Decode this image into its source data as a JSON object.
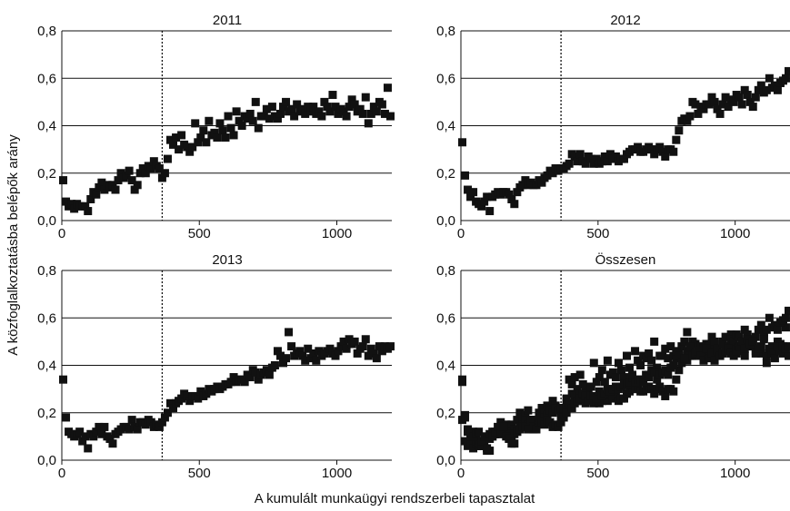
{
  "xlabel": "A kumulált munkaügyi rendszerbeli tapasztalat",
  "ylabel": "A közfoglalkoztatásba belépők arány",
  "chart_data": [
    {
      "type": "scatter",
      "title": "2011",
      "xlim": [
        0,
        1200
      ],
      "ylim": [
        0,
        0.8
      ],
      "xticks": [
        "0",
        "500",
        "1000"
      ],
      "yticks": [
        "0,0",
        "0,2",
        "0,4",
        "0,6",
        "0,8"
      ],
      "grid": "horizontal",
      "marker": "square",
      "vline_x": 365,
      "x": [
        5,
        15,
        25,
        35,
        45,
        55,
        65,
        75,
        85,
        95,
        105,
        115,
        125,
        135,
        145,
        155,
        165,
        175,
        185,
        195,
        205,
        215,
        225,
        235,
        245,
        255,
        265,
        275,
        285,
        295,
        305,
        315,
        325,
        335,
        345,
        355,
        365,
        375,
        385,
        395,
        405,
        415,
        425,
        435,
        445,
        455,
        465,
        475,
        485,
        495,
        505,
        515,
        525,
        535,
        545,
        555,
        565,
        575,
        585,
        595,
        605,
        615,
        625,
        635,
        645,
        655,
        665,
        675,
        685,
        695,
        705,
        715,
        725,
        735,
        745,
        755,
        765,
        775,
        785,
        795,
        805,
        815,
        825,
        835,
        845,
        855,
        865,
        875,
        885,
        895,
        905,
        915,
        925,
        935,
        945,
        955,
        965,
        975,
        985,
        995,
        1005,
        1015,
        1025,
        1035,
        1045,
        1055,
        1065,
        1075,
        1085,
        1095,
        1105,
        1115,
        1125,
        1135,
        1145,
        1155,
        1165,
        1175,
        1185,
        1195
      ],
      "y": [
        0.17,
        0.08,
        0.06,
        0.07,
        0.05,
        0.07,
        0.06,
        0.06,
        0.06,
        0.04,
        0.09,
        0.12,
        0.11,
        0.14,
        0.16,
        0.13,
        0.15,
        0.14,
        0.15,
        0.13,
        0.17,
        0.2,
        0.18,
        0.19,
        0.21,
        0.17,
        0.13,
        0.15,
        0.2,
        0.22,
        0.2,
        0.23,
        0.22,
        0.25,
        0.23,
        0.22,
        0.18,
        0.2,
        0.26,
        0.34,
        0.32,
        0.35,
        0.3,
        0.36,
        0.32,
        0.31,
        0.29,
        0.31,
        0.41,
        0.33,
        0.35,
        0.38,
        0.33,
        0.42,
        0.36,
        0.37,
        0.35,
        0.41,
        0.38,
        0.35,
        0.44,
        0.39,
        0.36,
        0.46,
        0.42,
        0.4,
        0.44,
        0.43,
        0.45,
        0.42,
        0.5,
        0.39,
        0.44,
        0.44,
        0.47,
        0.43,
        0.48,
        0.44,
        0.43,
        0.45,
        0.48,
        0.5,
        0.46,
        0.47,
        0.44,
        0.49,
        0.46,
        0.47,
        0.45,
        0.48,
        0.46,
        0.48,
        0.45,
        0.46,
        0.44,
        0.5,
        0.48,
        0.46,
        0.53,
        0.48,
        0.45,
        0.47,
        0.46,
        0.44,
        0.48,
        0.51,
        0.49,
        0.46,
        0.47,
        0.45,
        0.52,
        0.41,
        0.45,
        0.48,
        0.46,
        0.5,
        0.49,
        0.45,
        0.56,
        0.44
      ]
    },
    {
      "type": "scatter",
      "title": "2012",
      "xlim": [
        0,
        1200
      ],
      "ylim": [
        0,
        0.8
      ],
      "xticks": [
        "0",
        "500",
        "1000"
      ],
      "yticks": [
        "0,0",
        "0,2",
        "0,4",
        "0,6",
        "0,8"
      ],
      "grid": "horizontal",
      "marker": "square",
      "vline_x": 365,
      "x": [
        5,
        15,
        25,
        35,
        45,
        55,
        65,
        75,
        85,
        95,
        105,
        115,
        125,
        135,
        145,
        155,
        165,
        175,
        185,
        195,
        205,
        215,
        225,
        235,
        245,
        255,
        265,
        275,
        285,
        295,
        305,
        315,
        325,
        335,
        345,
        355,
        365,
        375,
        385,
        395,
        405,
        415,
        425,
        435,
        445,
        455,
        465,
        475,
        485,
        495,
        505,
        515,
        525,
        535,
        545,
        555,
        565,
        575,
        585,
        595,
        605,
        615,
        625,
        635,
        645,
        655,
        665,
        675,
        685,
        695,
        705,
        715,
        725,
        735,
        745,
        755,
        765,
        775,
        785,
        795,
        805,
        815,
        825,
        835,
        845,
        855,
        865,
        875,
        885,
        895,
        905,
        915,
        925,
        935,
        945,
        955,
        965,
        975,
        985,
        995,
        1005,
        1015,
        1025,
        1035,
        1045,
        1055,
        1065,
        1075,
        1085,
        1095,
        1105,
        1115,
        1125,
        1135,
        1145,
        1155,
        1165,
        1175,
        1185,
        1195
      ],
      "y": [
        0.33,
        0.19,
        0.13,
        0.1,
        0.12,
        0.08,
        0.07,
        0.06,
        0.08,
        0.1,
        0.04,
        0.1,
        0.11,
        0.12,
        0.11,
        0.12,
        0.12,
        0.11,
        0.09,
        0.07,
        0.12,
        0.14,
        0.15,
        0.17,
        0.15,
        0.16,
        0.15,
        0.15,
        0.17,
        0.16,
        0.18,
        0.19,
        0.21,
        0.2,
        0.22,
        0.21,
        0.22,
        0.22,
        0.23,
        0.24,
        0.28,
        0.27,
        0.25,
        0.28,
        0.25,
        0.24,
        0.27,
        0.26,
        0.24,
        0.26,
        0.24,
        0.25,
        0.27,
        0.25,
        0.28,
        0.26,
        0.27,
        0.25,
        0.26,
        0.26,
        0.28,
        0.29,
        0.3,
        0.3,
        0.31,
        0.29,
        0.29,
        0.3,
        0.31,
        0.3,
        0.28,
        0.3,
        0.31,
        0.29,
        0.27,
        0.3,
        0.3,
        0.29,
        0.34,
        0.38,
        0.42,
        0.43,
        0.42,
        0.44,
        0.5,
        0.49,
        0.45,
        0.48,
        0.47,
        0.49,
        0.49,
        0.52,
        0.5,
        0.47,
        0.45,
        0.49,
        0.52,
        0.48,
        0.51,
        0.5,
        0.53,
        0.52,
        0.49,
        0.55,
        0.53,
        0.5,
        0.48,
        0.52,
        0.55,
        0.57,
        0.54,
        0.55,
        0.6,
        0.56,
        0.57,
        0.55,
        0.58,
        0.59,
        0.6,
        0.63
      ]
    },
    {
      "type": "scatter",
      "title": "2013",
      "xlim": [
        0,
        1200
      ],
      "ylim": [
        0,
        0.8
      ],
      "xticks": [
        "0",
        "500",
        "1000"
      ],
      "yticks": [
        "0,0",
        "0,2",
        "0,4",
        "0,6",
        "0,8"
      ],
      "grid": "horizontal",
      "marker": "square",
      "vline_x": 365,
      "x": [
        5,
        15,
        25,
        35,
        45,
        55,
        65,
        75,
        85,
        95,
        105,
        115,
        125,
        135,
        145,
        155,
        165,
        175,
        185,
        195,
        205,
        215,
        225,
        235,
        245,
        255,
        265,
        275,
        285,
        295,
        305,
        315,
        325,
        335,
        345,
        355,
        365,
        375,
        385,
        395,
        405,
        415,
        425,
        435,
        445,
        455,
        465,
        475,
        485,
        495,
        505,
        515,
        525,
        535,
        545,
        555,
        565,
        575,
        585,
        595,
        605,
        615,
        625,
        635,
        645,
        655,
        665,
        675,
        685,
        695,
        705,
        715,
        725,
        735,
        745,
        755,
        765,
        775,
        785,
        795,
        805,
        815,
        825,
        835,
        845,
        855,
        865,
        875,
        885,
        895,
        905,
        915,
        925,
        935,
        945,
        955,
        965,
        975,
        985,
        995,
        1005,
        1015,
        1025,
        1035,
        1045,
        1055,
        1065,
        1075,
        1085,
        1095,
        1105,
        1115,
        1125,
        1135,
        1145,
        1155,
        1165,
        1175,
        1185,
        1195
      ],
      "y": [
        0.34,
        0.18,
        0.12,
        0.11,
        0.1,
        0.11,
        0.12,
        0.08,
        0.1,
        0.05,
        0.11,
        0.1,
        0.12,
        0.14,
        0.11,
        0.14,
        0.1,
        0.09,
        0.07,
        0.11,
        0.12,
        0.13,
        0.14,
        0.14,
        0.13,
        0.17,
        0.14,
        0.13,
        0.16,
        0.16,
        0.15,
        0.17,
        0.16,
        0.14,
        0.15,
        0.14,
        0.16,
        0.18,
        0.2,
        0.24,
        0.22,
        0.24,
        0.25,
        0.26,
        0.28,
        0.27,
        0.25,
        0.27,
        0.27,
        0.26,
        0.29,
        0.27,
        0.28,
        0.3,
        0.29,
        0.3,
        0.31,
        0.3,
        0.31,
        0.32,
        0.32,
        0.33,
        0.35,
        0.33,
        0.34,
        0.34,
        0.33,
        0.36,
        0.35,
        0.38,
        0.37,
        0.34,
        0.36,
        0.37,
        0.38,
        0.36,
        0.39,
        0.4,
        0.46,
        0.44,
        0.41,
        0.43,
        0.54,
        0.48,
        0.44,
        0.45,
        0.46,
        0.44,
        0.42,
        0.47,
        0.43,
        0.45,
        0.42,
        0.46,
        0.44,
        0.45,
        0.46,
        0.47,
        0.45,
        0.44,
        0.46,
        0.48,
        0.5,
        0.47,
        0.51,
        0.49,
        0.5,
        0.45,
        0.47,
        0.48,
        0.51,
        0.44,
        0.47,
        0.45,
        0.43,
        0.48,
        0.46,
        0.48,
        0.47,
        0.48
      ]
    },
    {
      "type": "scatter",
      "title": "Összesen",
      "xlim": [
        0,
        1200
      ],
      "ylim": [
        0,
        0.8
      ],
      "xticks": [
        "0",
        "500",
        "1000"
      ],
      "yticks": [
        "0,0",
        "0,2",
        "0,4",
        "0,6",
        "0,8"
      ],
      "grid": "horizontal",
      "marker": "square",
      "vline_x": 365,
      "note": "combined scatter of the 2011, 2012 and 2013 series"
    }
  ]
}
